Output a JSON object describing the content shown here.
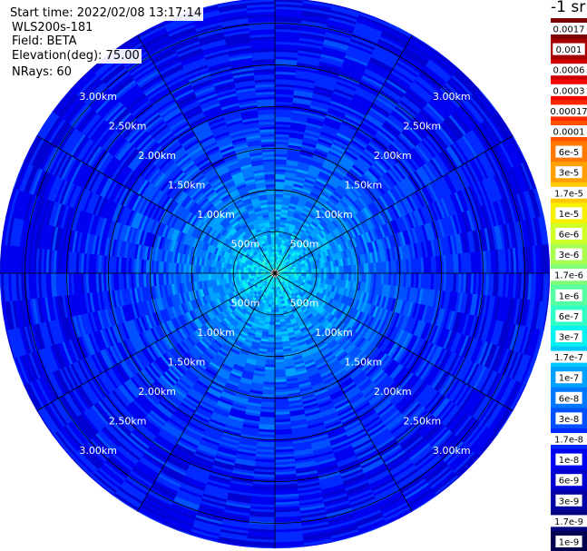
{
  "header": {
    "start_time": "Start time: 2022/02/08 13:17:14",
    "instrument": "WLS200s-181",
    "field": "Field: BETA",
    "elevation": "Elevation(deg): 75.00",
    "nrays": "NRays: 60"
  },
  "colorbar": {
    "unit": "-1 sr",
    "labels": [
      "0.0017",
      "0.001",
      "0.0006",
      "0.0003",
      "0.00017",
      "0.0001",
      "6e-5",
      "3e-5",
      "1.7e-5",
      "1e-5",
      "6e-6",
      "3e-6",
      "1.7e-6",
      "1e-6",
      "6e-7",
      "3e-7",
      "1.7e-7",
      "1e-7",
      "6e-8",
      "3e-8",
      "1.7e-8",
      "1e-8",
      "6e-9",
      "3e-9",
      "1.7e-9",
      "1e-9"
    ],
    "colors": [
      "#7f0000",
      "#a50000",
      "#d00000",
      "#f10800",
      "#ff2800",
      "#ff5000",
      "#ff7800",
      "#ffa000",
      "#ffc800",
      "#f6f000",
      "#d0ff27",
      "#a8ff4f",
      "#80ff78",
      "#58ffa0",
      "#30ffc8",
      "#08f0f0",
      "#00c8ff",
      "#00a0ff",
      "#0078ff",
      "#0050ff",
      "#0028ff",
      "#0000f1",
      "#0000d0",
      "#0000a5",
      "#00007f",
      "#00004f"
    ]
  },
  "chart_data": {
    "type": "heatmap",
    "projection": "polar-ppi",
    "title": "",
    "field": "BETA",
    "elevation_deg": 75.0,
    "n_rays": 60,
    "range_rings_km": [
      0.5,
      1.0,
      1.5,
      2.0,
      2.5,
      3.0
    ],
    "range_ring_labels": [
      "500m",
      "1.00km",
      "1.50km",
      "2.00km",
      "2.50km",
      "3.00km"
    ],
    "max_range_km": 3.3,
    "spokes_deg": [
      0,
      30,
      60,
      90,
      120,
      150,
      180,
      210,
      240,
      270,
      300,
      330
    ],
    "color_scale": "log",
    "color_range": [
      1e-09,
      0.0017
    ],
    "typical_beta_by_range_km": [
      {
        "range": 0.1,
        "beta": 3e-07
      },
      {
        "range": 0.3,
        "beta": 1.7e-07
      },
      {
        "range": 0.6,
        "beta": 1e-07
      },
      {
        "range": 1.0,
        "beta": 6e-08
      },
      {
        "range": 1.5,
        "beta": 3e-08
      },
      {
        "range": 2.0,
        "beta": 2e-08
      },
      {
        "range": 2.5,
        "beta": 1.5e-08
      },
      {
        "range": 3.0,
        "beta": 1.3e-08
      },
      {
        "range": 3.3,
        "beta": 1.2e-08
      }
    ]
  }
}
